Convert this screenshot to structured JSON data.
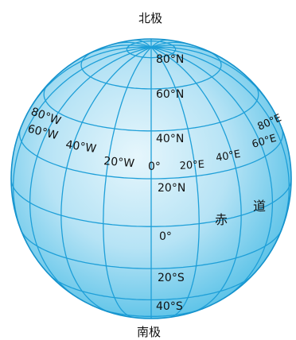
{
  "poles": {
    "north": "北极",
    "south": "南极"
  },
  "equator_label": {
    "char1": "赤",
    "char2": "道"
  },
  "latitude_labels": [
    {
      "id": "lat-80n",
      "text": "80°N"
    },
    {
      "id": "lat-60n",
      "text": "60°N"
    },
    {
      "id": "lat-40n",
      "text": "40°N"
    },
    {
      "id": "lat-20n",
      "text": "20°N"
    },
    {
      "id": "lat-0",
      "text": "0°"
    },
    {
      "id": "lat-20s",
      "text": "20°S"
    },
    {
      "id": "lat-40s",
      "text": "40°S"
    }
  ],
  "longitude_labels": [
    {
      "id": "lon-80w",
      "text": "80°W"
    },
    {
      "id": "lon-60w",
      "text": "60°W"
    },
    {
      "id": "lon-40w",
      "text": "40°W"
    },
    {
      "id": "lon-20w",
      "text": "20°W"
    },
    {
      "id": "lon-0",
      "text": "0°"
    },
    {
      "id": "lon-20e",
      "text": "20°E"
    },
    {
      "id": "lon-40e",
      "text": "40°E"
    },
    {
      "id": "lon-60e",
      "text": "60°E"
    },
    {
      "id": "lon-80e",
      "text": "80°E"
    }
  ],
  "colors": {
    "globe_fill_center": "#e6f6fc",
    "globe_fill_edge": "#5cc3e8",
    "grid_line": "#1e9fd8",
    "outline": "#1592cc"
  }
}
